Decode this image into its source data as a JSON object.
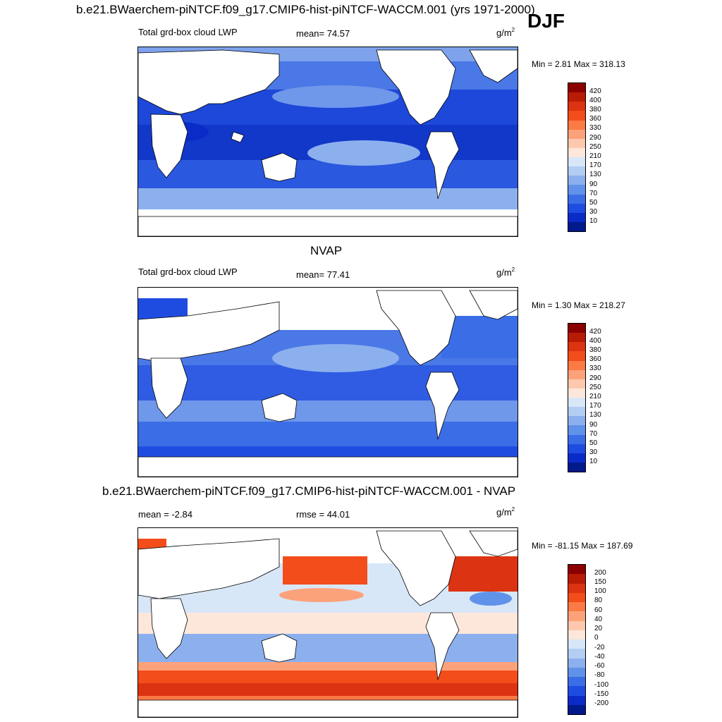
{
  "main_title": "b.e21.BWaerchem-piNTCF.f09_g17.CMIP6-hist-piNTCF-WACCM.001 (yrs 1971-2000)",
  "season": "DJF",
  "panels": [
    {
      "heading": "",
      "left_label": "Total grd-box cloud LWP",
      "center_label": "mean=  74.57",
      "units": "g/m",
      "units_exp": "2",
      "minmax": "Min =   2.81 Max = 318.13",
      "colorbar": {
        "labels": [
          "420",
          "400",
          "380",
          "360",
          "330",
          "290",
          "250",
          "210",
          "170",
          "130",
          "90",
          "70",
          "50",
          "30",
          "10"
        ],
        "colors": [
          "#8b0000",
          "#b81c05",
          "#dc3312",
          "#f24d1a",
          "#fb7a45",
          "#fca27b",
          "#fdc8ad",
          "#fde7da",
          "#d8e7f8",
          "#b3cdf3",
          "#8cb0ee",
          "#6192ea",
          "#3b6ee6",
          "#1f4ce0",
          "#0b2bc9",
          "#001a8c"
        ]
      },
      "map": {
        "ocean_base": "#2f5ce2"
      }
    },
    {
      "heading": "NVAP",
      "left_label": "Total grd-box cloud LWP",
      "center_label": "mean=  77.41",
      "units": "g/m",
      "units_exp": "2",
      "minmax": "Min =   1.30 Max = 218.27",
      "colorbar": {
        "labels": [
          "420",
          "400",
          "380",
          "360",
          "330",
          "290",
          "250",
          "210",
          "170",
          "130",
          "90",
          "70",
          "50",
          "30",
          "10"
        ],
        "colors": [
          "#8b0000",
          "#b81c05",
          "#dc3312",
          "#f24d1a",
          "#fb7a45",
          "#fca27b",
          "#fdc8ad",
          "#fde7da",
          "#d8e7f8",
          "#b3cdf3",
          "#8cb0ee",
          "#6192ea",
          "#3b6ee6",
          "#1f4ce0",
          "#0b2bc9",
          "#001a8c"
        ]
      },
      "map": {
        "ocean_base": "#3d6ae4"
      }
    },
    {
      "heading": "b.e21.BWaerchem-piNTCF.f09_g17.CMIP6-hist-piNTCF-WACCM.001 - NVAP",
      "left_label": "mean =  -2.84",
      "center_label": "rmse =  44.01",
      "units": "g/m",
      "units_exp": "2",
      "minmax": "Min = -81.15 Max = 187.69",
      "colorbar": {
        "labels": [
          "200",
          "150",
          "100",
          "80",
          "60",
          "40",
          "20",
          "0",
          "-20",
          "-40",
          "-60",
          "-80",
          "-100",
          "-150",
          "-200"
        ],
        "colors": [
          "#8b0000",
          "#b81c05",
          "#dc3312",
          "#f24d1a",
          "#fb7a45",
          "#fca27b",
          "#fdc8ad",
          "#fde7da",
          "#d8e7f8",
          "#b3cdf3",
          "#8cb0ee",
          "#6192ea",
          "#3b6ee6",
          "#1f4ce0",
          "#0b2bc9",
          "#001a8c"
        ]
      },
      "map": {
        "ocean_base": "#d3e2f7"
      }
    }
  ]
}
